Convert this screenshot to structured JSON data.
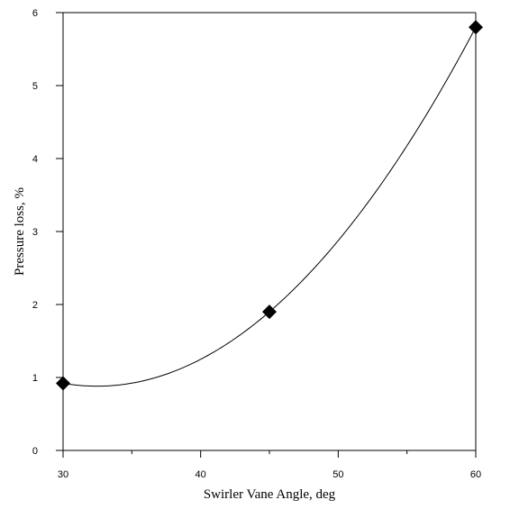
{
  "chart_data": {
    "type": "scatter",
    "xlabel": "Swirler Vane Angle, deg",
    "ylabel": "Pressure loss, %",
    "xlim": [
      30,
      60
    ],
    "ylim": [
      0,
      6
    ],
    "x_ticks": [
      30,
      40,
      50,
      60
    ],
    "x_minor_ticks": [
      35,
      45,
      55
    ],
    "y_ticks": [
      0,
      1,
      2,
      3,
      4,
      5,
      6
    ],
    "x_tick_labels": [
      "30",
      "40",
      "50",
      "60"
    ],
    "y_tick_labels": [
      "0",
      "1",
      "2",
      "3",
      "4",
      "5",
      "6"
    ],
    "grid": false,
    "box": "open",
    "series": [
      {
        "marker": "diamond",
        "fit": "smooth-curve",
        "points": [
          {
            "x": 30,
            "y": 0.92
          },
          {
            "x": 45,
            "y": 1.9
          },
          {
            "x": 60,
            "y": 5.8
          }
        ]
      }
    ]
  }
}
